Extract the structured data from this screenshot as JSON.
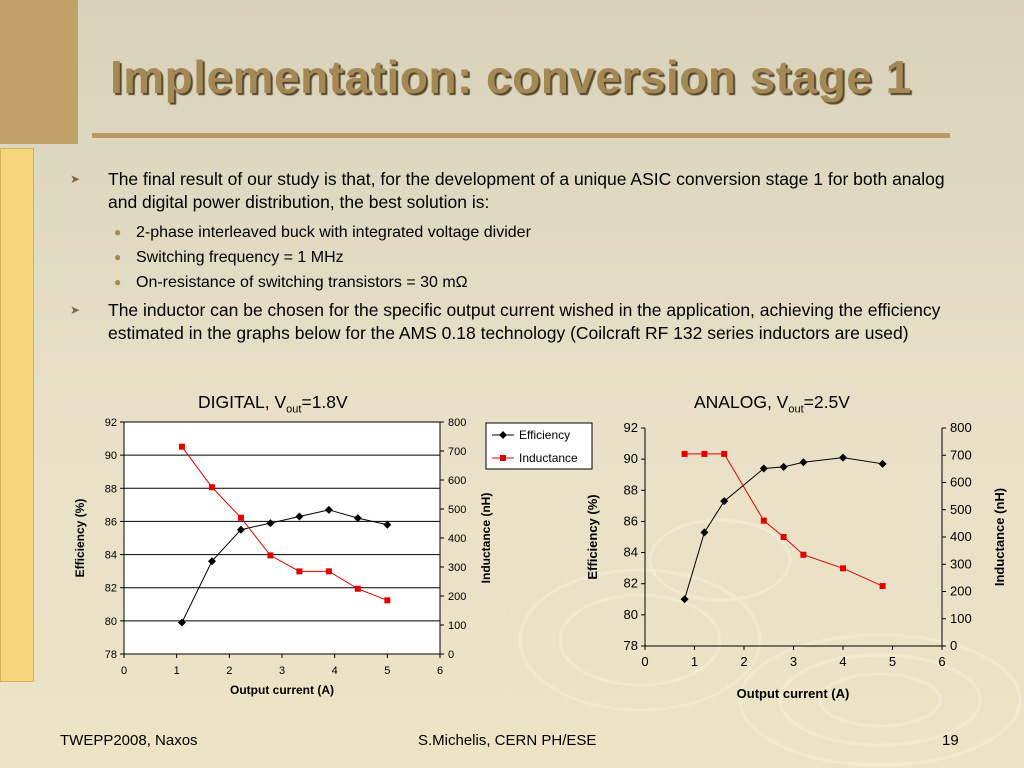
{
  "title": "Implementation: conversion stage 1",
  "bullets": [
    {
      "text": "The final result of our study is that, for the development of a unique ASIC conversion stage 1 for both analog and digital power distribution, the best solution is:",
      "sub": [
        "2-phase interleaved buck with integrated voltage divider",
        "Switching frequency = 1 MHz",
        "On-resistance of switching transistors = 30 mΩ"
      ]
    },
    {
      "text": "The inductor can be chosen for the specific output current wished in the application, achieving the efficiency estimated in the graphs below for the AMS 0.18 technology (Coilcraft RF 132 series inductors are used)"
    }
  ],
  "chart_titles": {
    "digital": {
      "main": "DIGITAL, V",
      "sub": "out",
      "tail": "=1.8V"
    },
    "analog": {
      "main": "ANALOG, V",
      "sub": "out",
      "tail": "=2.5V"
    }
  },
  "chart_data": [
    {
      "type": "line",
      "title": "DIGITAL, Vout=1.8V",
      "xlabel": "Output current (A)",
      "ylabel": "Efficiency (%)",
      "y2label": "Inductance (nH)",
      "xlim": [
        0,
        6
      ],
      "ylim": [
        78,
        92
      ],
      "y2lim": [
        0,
        800
      ],
      "xticks": [
        "0",
        "1",
        "2",
        "3",
        "4",
        "5",
        "6"
      ],
      "yticks": [
        "78",
        "80",
        "82",
        "84",
        "86",
        "88",
        "90",
        "92"
      ],
      "y2ticks": [
        "0",
        "100",
        "200",
        "300",
        "400",
        "500",
        "600",
        "700",
        "800"
      ],
      "grid": true,
      "legend": "top-right",
      "series": [
        {
          "name": "Efficiency",
          "axis": "left",
          "color": "#000000",
          "marker": "diamond",
          "x": [
            1.1,
            1.67,
            2.22,
            2.78,
            3.33,
            3.89,
            4.44,
            5.0
          ],
          "y": [
            79.9,
            83.6,
            85.5,
            85.9,
            86.3,
            86.7,
            86.2,
            85.8
          ]
        },
        {
          "name": "Inductance",
          "axis": "right",
          "color": "#e00000",
          "marker": "square",
          "x": [
            1.1,
            1.67,
            2.22,
            2.78,
            3.33,
            3.89,
            4.44,
            5.0
          ],
          "y": [
            715,
            575,
            470,
            340,
            285,
            285,
            225,
            185
          ]
        }
      ]
    },
    {
      "type": "line",
      "title": "ANALOG, Vout=2.5V",
      "xlabel": "Output current (A)",
      "ylabel": "Efficiency (%)",
      "y2label": "Inductance (nH)",
      "xlim": [
        0,
        6
      ],
      "ylim": [
        78,
        92
      ],
      "y2lim": [
        0,
        800
      ],
      "xticks": [
        "0",
        "1",
        "2",
        "3",
        "4",
        "5",
        "6"
      ],
      "yticks": [
        "78",
        "80",
        "82",
        "84",
        "86",
        "88",
        "90",
        "92"
      ],
      "y2ticks": [
        "0",
        "100",
        "200",
        "300",
        "400",
        "500",
        "600",
        "700",
        "800"
      ],
      "grid": false,
      "legend": "none",
      "series": [
        {
          "name": "Efficiency",
          "axis": "left",
          "color": "#000000",
          "marker": "diamond",
          "x": [
            0.8,
            1.2,
            1.6,
            2.4,
            2.8,
            3.2,
            4.0,
            4.8
          ],
          "y": [
            81.0,
            85.3,
            87.3,
            89.4,
            89.5,
            89.8,
            90.1,
            89.7
          ]
        },
        {
          "name": "Inductance",
          "axis": "right",
          "color": "#e00000",
          "marker": "square",
          "x": [
            0.8,
            1.2,
            1.6,
            2.4,
            2.8,
            3.2,
            4.0,
            4.8
          ],
          "y": [
            705,
            705,
            705,
            460,
            400,
            335,
            285,
            220
          ]
        }
      ]
    }
  ],
  "footer": {
    "left": "TWEPP2008, Naxos",
    "center": "S.Michelis, CERN PH/ESE",
    "page": "19"
  }
}
